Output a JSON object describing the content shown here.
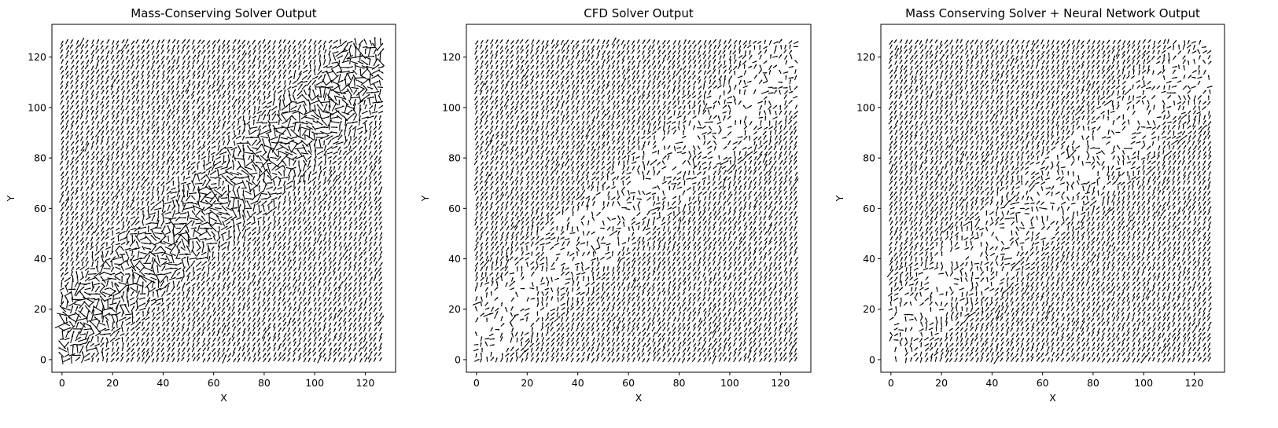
{
  "figure": {
    "layout": "1 row x 3 panels"
  },
  "chart_data": [
    {
      "type": "quiver",
      "title": "Mass-Conserving Solver Output",
      "xlabel": "X",
      "ylabel": "Y",
      "xlim": [
        -4,
        132
      ],
      "ylim": [
        -5,
        133
      ],
      "xticks": [
        0,
        20,
        40,
        60,
        80,
        100,
        120
      ],
      "yticks": [
        0,
        20,
        40,
        60,
        80,
        100,
        120
      ],
      "grid_size": 128,
      "dominant_direction": "up-right (southwest-to-northeast flow)",
      "turbulent_band": "diagonal from (0, 10) to (128, 120)",
      "arrow_color": "#000000"
    },
    {
      "type": "quiver",
      "title": "CFD Solver Output",
      "xlabel": "X",
      "ylabel": "Y",
      "xlim": [
        -4,
        132
      ],
      "ylim": [
        -5,
        133
      ],
      "xticks": [
        0,
        20,
        40,
        60,
        80,
        100,
        120
      ],
      "yticks": [
        0,
        20,
        40,
        60,
        80,
        100,
        120
      ],
      "grid_size": 128,
      "dominant_direction": "up-right (southwest-to-northeast flow)",
      "turbulent_band": "diagonal from (0, 10) to (128, 120)",
      "arrow_color": "#000000"
    },
    {
      "type": "quiver",
      "title": "Mass Conserving Solver + Neural Network Output",
      "xlabel": "X",
      "ylabel": "Y",
      "xlim": [
        -4,
        132
      ],
      "ylim": [
        -5,
        133
      ],
      "xticks": [
        0,
        20,
        40,
        60,
        80,
        100,
        120
      ],
      "yticks": [
        0,
        20,
        40,
        60,
        80,
        100,
        120
      ],
      "grid_size": 128,
      "dominant_direction": "up-right (southwest-to-northeast flow)",
      "turbulent_band": "diagonal from (0, 10) to (128, 120)",
      "arrow_color": "#000000"
    }
  ]
}
